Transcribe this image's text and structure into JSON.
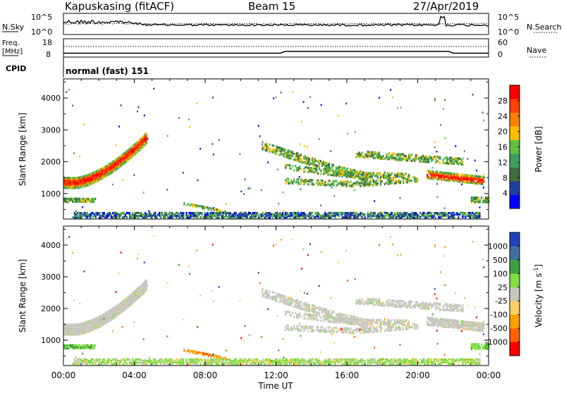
{
  "header": {
    "station": "Kapuskasing (fitACF)",
    "beam": "Beam 15",
    "date": "27/Apr/2019"
  },
  "nsky_panel": {
    "left_label": "N.Sky",
    "right_label": "N.Search",
    "left_ticks": [
      "10^5",
      "10^0"
    ],
    "right_ticks": [
      "10^5",
      "10^0"
    ]
  },
  "freq_panel": {
    "left_label_lines": [
      "Freq.",
      "[MHz]"
    ],
    "right_label": "Nave",
    "left_ticks": [
      "18",
      "8"
    ],
    "right_ticks": [
      "60",
      "0"
    ]
  },
  "cpid": {
    "label": "CPID",
    "value": "normal (fast) 151"
  },
  "x_axis": {
    "label": "Time UT",
    "ticks": [
      "00:00",
      "04:00",
      "08:00",
      "12:00",
      "16:00",
      "20:00",
      "00:00"
    ]
  },
  "colors": {
    "power": [
      "#0000ff",
      "#1f3f9f",
      "#3f6f3f",
      "#3f9f5f",
      "#5fbf3f",
      "#ffbf00",
      "#ff8000",
      "#ff4000",
      "#ff0000"
    ],
    "velocity": [
      "#ff0000",
      "#ff6000",
      "#ffa000",
      "#ffd060",
      "#c8c8c0",
      "#80e040",
      "#3fa040",
      "#3f6fa0",
      "#2040c0"
    ]
  },
  "chart_data": [
    {
      "type": "heatmap",
      "panel": "power",
      "ylabel": "Slant Range [km]",
      "yticks": [
        "1000",
        "2000",
        "3000",
        "4000"
      ],
      "ylim": [
        200,
        4600
      ],
      "xlim_hours": [
        0,
        24
      ],
      "colorbar": {
        "label": "Power [dB]",
        "ticks": [
          "4",
          "8",
          "12",
          "16",
          "20",
          "24",
          "28"
        ],
        "range": [
          0,
          32
        ]
      }
    },
    {
      "type": "heatmap",
      "panel": "velocity",
      "ylabel": "Slant Range [km]",
      "yticks": [
        "1000",
        "2000",
        "3000",
        "4000"
      ],
      "ylim": [
        200,
        4600
      ],
      "xlim_hours": [
        0,
        24
      ],
      "colorbar": {
        "label": "Velocity [m s^-1]",
        "label_parts": [
          "Velocity [m s",
          "-1",
          "]"
        ],
        "ticks": [
          "1000",
          "500",
          "100",
          "25",
          "-25",
          "-100",
          "-500",
          "-1000"
        ]
      }
    }
  ]
}
